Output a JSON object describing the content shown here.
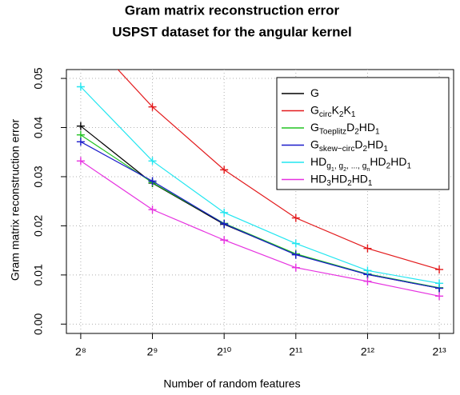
{
  "chart_data": {
    "type": "line",
    "title": "Gram matrix reconstruction error",
    "subtitle": "USPST dataset for the angular kernel",
    "x_label": "Number of random features",
    "y_label": "Gram matrix reconstruction error",
    "x": [
      256,
      512,
      1024,
      2048,
      4096,
      8192
    ],
    "x_log_base": 2,
    "xlim": [
      222.9,
      9410.1
    ],
    "xticks": [
      {
        "value": 256,
        "label": "2⁸"
      },
      {
        "value": 512,
        "label": "2⁹"
      },
      {
        "value": 1024,
        "label": "2¹⁰"
      },
      {
        "value": 2048,
        "label": "2¹¹"
      },
      {
        "value": 4096,
        "label": "2¹²"
      },
      {
        "value": 8192,
        "label": "2¹³"
      }
    ],
    "ylim": [
      -0.0019,
      0.0518
    ],
    "yticks": [
      {
        "value": 0,
        "label": "0.00"
      },
      {
        "value": 0.01,
        "label": "0.01"
      },
      {
        "value": 0.02,
        "label": "0.02"
      },
      {
        "value": 0.03,
        "label": "0.03"
      },
      {
        "value": 0.04,
        "label": "0.04"
      },
      {
        "value": 0.05,
        "label": "0.05"
      }
    ],
    "grid": true,
    "legend": "top-right",
    "series": [
      {
        "name": "G",
        "color": "#000000",
        "values": [
          0.0403,
          0.0287,
          0.0203,
          0.0142,
          0.0101,
          0.0073
        ]
      },
      {
        "name": "G_{circ}K_{2}K_{1}",
        "color": "#e31a1c",
        "values": [
          0.06,
          0.0442,
          0.0314,
          0.0216,
          0.0154,
          0.0111
        ]
      },
      {
        "name": "G_{Toeplitz}D_{2}HD_{1}",
        "color": "#22c322",
        "values": [
          0.0385,
          0.0288,
          0.0205,
          0.0143,
          0.0102,
          0.0074
        ]
      },
      {
        "name": "G_{skew−circ}D_{2}HD_{1}",
        "color": "#1a1aca",
        "values": [
          0.0371,
          0.0291,
          0.0204,
          0.0141,
          0.0101,
          0.0073
        ]
      },
      {
        "name": "HD_{g_{1}, g_{2}, ..., g_{n}}HD_{2}HD_{1}",
        "color": "#22e6f0",
        "values": [
          0.0483,
          0.0332,
          0.0227,
          0.0164,
          0.0109,
          0.0083
        ]
      },
      {
        "name": "HD_{3}HD_{2}HD_{1}",
        "color": "#e632e0",
        "values": [
          0.0332,
          0.0233,
          0.0171,
          0.0115,
          0.0087,
          0.0057
        ]
      }
    ]
  }
}
